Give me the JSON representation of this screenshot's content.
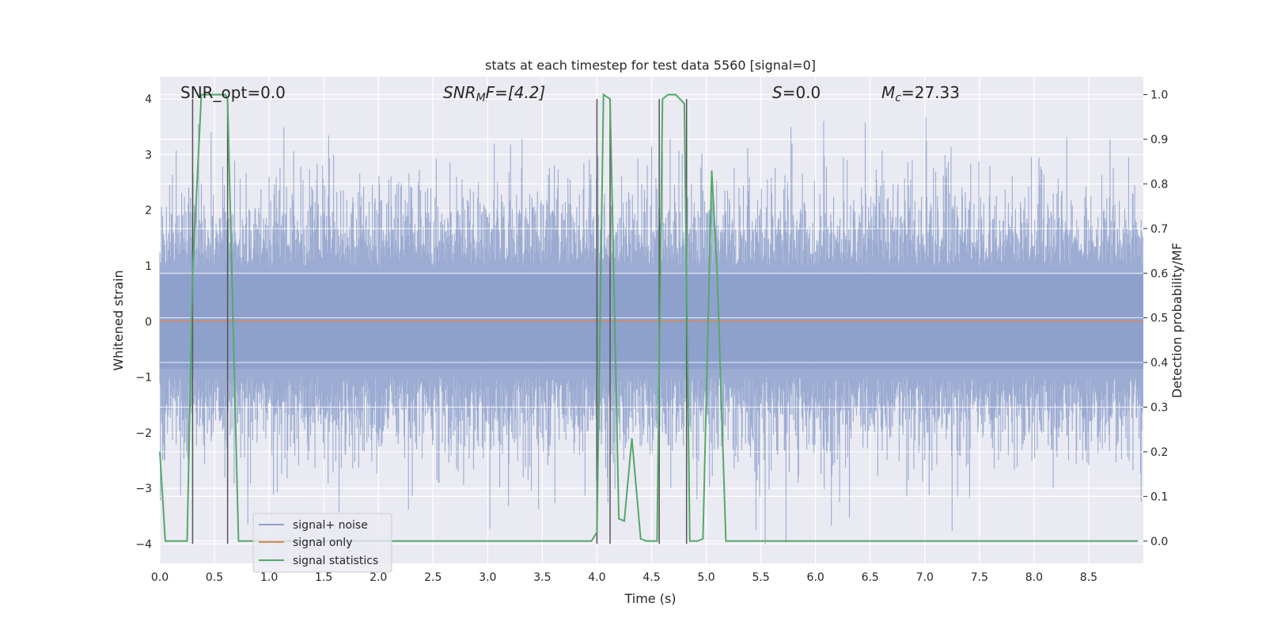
{
  "chart_data": {
    "type": "line",
    "title": "stats at each timestep for test data 5560 [signal=0]",
    "xlabel": "Time (s)",
    "ylabel": "Whitened strain",
    "y2label": "Detection probability/MF",
    "xlim": [
      0,
      9.0
    ],
    "ylim": [
      -4.35,
      4.4
    ],
    "y2lim": [
      -0.05,
      1.04
    ],
    "x_ticks": [
      0.0,
      0.5,
      1.0,
      1.5,
      2.0,
      2.5,
      3.0,
      3.5,
      4.0,
      4.5,
      5.0,
      5.5,
      6.0,
      6.5,
      7.0,
      7.5,
      8.0,
      8.5
    ],
    "x_tick_labels": [
      "0.0",
      "0.5",
      "1.0",
      "1.5",
      "2.0",
      "2.5",
      "3.0",
      "3.5",
      "4.0",
      "4.5",
      "5.0",
      "5.5",
      "6.0",
      "6.5",
      "7.0",
      "7.5",
      "8.0",
      "8.5"
    ],
    "y_ticks": [
      4,
      3,
      2,
      1,
      0,
      -1,
      -2,
      -3,
      -4
    ],
    "y_tick_labels": [
      "4",
      "3",
      "2",
      "1",
      "0",
      "−1",
      "−2",
      "−3",
      "−4"
    ],
    "y2_ticks": [
      1.0,
      0.9,
      0.8,
      0.7,
      0.6,
      0.5,
      0.4,
      0.3,
      0.2,
      0.1,
      0.0
    ],
    "y2_tick_labels": [
      "1.0",
      "0.9",
      "0.8",
      "0.7",
      "0.6",
      "0.5",
      "0.4",
      "0.3",
      "0.2",
      "0.1",
      "0.0"
    ],
    "grid": true,
    "legend_position": "lower-left",
    "annotations": {
      "snr_opt": "SNR_opt=0.0",
      "snr_mf": "SNR",
      "snr_mf_sub": "M",
      "snr_mf_rest": "F=[4.2]",
      "s_val": "S",
      "s_rest": "=0.0",
      "mc": "M",
      "mc_sub": "c",
      "mc_rest": "=27.33"
    },
    "colors": {
      "noise": "#8da0cb",
      "signal": "#dd8452",
      "stats": "#55a868",
      "vlines": "#555555",
      "plot_bg": "#eaeaf2",
      "grid": "#ffffff"
    },
    "noise_amplitude_envelope": 4.0,
    "series": [
      {
        "name": "signal+ noise",
        "axis": "left",
        "style": "noise-band"
      },
      {
        "name": "signal only",
        "axis": "left",
        "x": [
          0,
          9.0
        ],
        "y": [
          0,
          0
        ]
      },
      {
        "name": "signal statistics",
        "axis": "right",
        "x": [
          0.0,
          0.05,
          0.25,
          0.3,
          0.38,
          0.6,
          0.62,
          0.72,
          0.8,
          3.95,
          4.0,
          4.06,
          4.12,
          4.2,
          4.25,
          4.32,
          4.4,
          4.45,
          4.55,
          4.6,
          4.65,
          4.72,
          4.8,
          4.85,
          4.92,
          4.97,
          5.05,
          5.1,
          5.18,
          5.3,
          8.75,
          8.95
        ],
        "y": [
          0.2,
          0.0,
          0.0,
          0.6,
          1.0,
          1.0,
          0.99,
          0.0,
          0.0,
          0.0,
          0.02,
          1.0,
          0.99,
          0.05,
          0.045,
          0.23,
          0.005,
          0.0,
          0.0,
          0.99,
          1.0,
          1.0,
          0.98,
          0.0,
          0.0,
          0.005,
          0.83,
          0.6,
          0.0,
          0.0,
          0.0,
          0.0
        ]
      }
    ],
    "vlines_x": [
      0.3,
      0.62,
      4.0,
      4.12,
      4.57,
      4.82
    ],
    "vlines_range": [
      -4.0,
      4.0
    ]
  }
}
